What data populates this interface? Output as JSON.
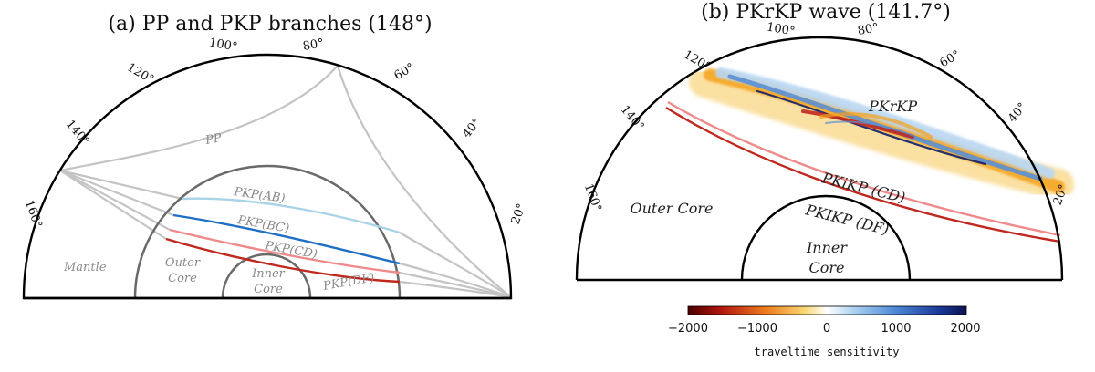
{
  "panel_a": {
    "title": "(a) PP and PKP branches (148°)",
    "ticks": [
      "20°",
      "40°",
      "60°",
      "80°",
      "100°",
      "120°",
      "140°",
      "160°"
    ],
    "labels": {
      "pp": "PP",
      "pkp_ab": "PKP(AB)",
      "pkp_bc": "PKP(BC)",
      "pkp_cd": "PKP(CD)",
      "pkp_df": "PKP(DF)",
      "mantle": "Mantle",
      "outer_core_1": "Outer",
      "outer_core_2": "Core",
      "inner_core_1": "Inner",
      "inner_core_2": "Core"
    }
  },
  "panel_b": {
    "title": "(b) PKrKP wave (141.7°)",
    "ticks": [
      "20°",
      "40°",
      "60°",
      "80°",
      "100°",
      "120°",
      "140°",
      "160°"
    ],
    "labels": {
      "pkrkp": "PKrKP",
      "pkikp_cd": "PKiKP (CD)",
      "pkikp_df": "PKIKP (DF)",
      "outer_core": "Outer Core",
      "inner_core_1": "Inner",
      "inner_core_2": "Core"
    },
    "colorbar": {
      "ticks": [
        "−2000",
        "−1000",
        "0",
        "1000",
        "2000"
      ],
      "label": "traveltime sensitivity"
    }
  },
  "colors": {
    "boundary": "#000000",
    "core_boundary_a": "#6a6a6a",
    "ray_grey": "#c4c4c4",
    "pkp_ab": "#a9d3e6",
    "pkp_bc": "#1f6fc4",
    "pkp_cd": "#ef8a8a",
    "pkp_df": "#c0271e",
    "sens_red": "#c0271e",
    "sens_orange": "#f5a21f",
    "sens_yellow": "#f8d37a",
    "sens_blue": "#5a8fd6",
    "sens_lightblue": "#b9d7f2",
    "sens_navy": "#0e1f6b"
  }
}
